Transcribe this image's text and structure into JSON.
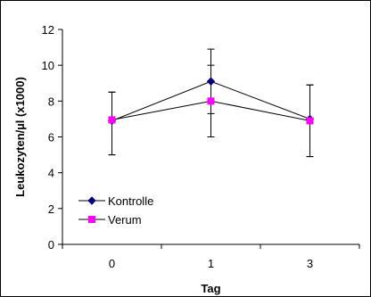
{
  "chart_data": {
    "type": "line",
    "title": "",
    "xlabel": "Tag",
    "ylabel": "Leukozyten/µl (x1000)",
    "categories": [
      "0",
      "1",
      "3"
    ],
    "ylim": [
      0,
      12
    ],
    "yticks": [
      0,
      2,
      4,
      6,
      8,
      10,
      12
    ],
    "grid": false,
    "legend_position": "bottom-left",
    "series": [
      {
        "name": "Kontrolle",
        "values": [
          6.9,
          9.1,
          7.0
        ],
        "error_high": [
          8.5,
          10.9,
          8.9
        ],
        "error_low": [
          5.0,
          7.3,
          4.9
        ],
        "color": "#000080",
        "marker": "diamond"
      },
      {
        "name": "Verum",
        "values": [
          6.95,
          8.0,
          6.9
        ],
        "error_high": [
          8.5,
          10.0,
          8.9
        ],
        "error_low": [
          5.0,
          6.0,
          4.9
        ],
        "color": "#ff00ff",
        "marker": "square"
      }
    ]
  }
}
